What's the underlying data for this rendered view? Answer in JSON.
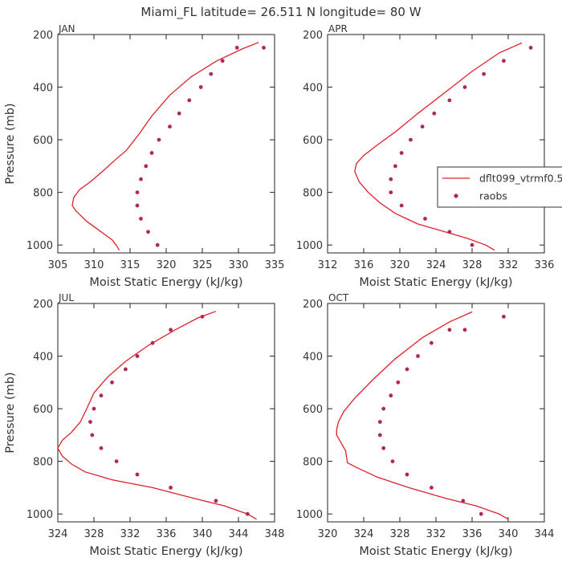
{
  "title": "Miami_FL   latitude= 26.511 N longitude= 80 W",
  "colors": {
    "model": "#e0202a",
    "obs": "#b0285a",
    "axis": "#222222",
    "text": "#333333"
  },
  "legend": {
    "entries": [
      {
        "label": "dflt099_vtrmf0.5",
        "kind": "line"
      },
      {
        "label": "raobs",
        "kind": "marker"
      }
    ]
  },
  "chart_data": [
    {
      "type": "line",
      "panel": "JAN",
      "xlabel": "Moist Static Energy (kJ/kg)",
      "ylabel": "Pressure (mb)",
      "xlim": [
        305,
        335
      ],
      "ylim": [
        200,
        1030
      ],
      "y_inverted": true,
      "xticks": [
        305,
        310,
        315,
        320,
        325,
        330,
        335
      ],
      "yticks": [
        200,
        400,
        600,
        800,
        1000
      ],
      "series": [
        {
          "kind": "line",
          "x": [
            313.5,
            313.2,
            312.5,
            311.0,
            309.0,
            307.5,
            307.0,
            307.2,
            308.0,
            309.5,
            311.2,
            312.8,
            314.5,
            316.2,
            318.0,
            320.5,
            323.5,
            327.0,
            330.5,
            332.8
          ],
          "y": [
            1020,
            1005,
            980,
            950,
            910,
            870,
            850,
            820,
            790,
            760,
            720,
            680,
            640,
            580,
            510,
            430,
            360,
            300,
            255,
            230
          ]
        },
        {
          "kind": "scatter",
          "x": [
            318.8,
            317.5,
            316.5,
            316.0,
            316.0,
            316.5,
            317.2,
            318.0,
            319.0,
            320.5,
            321.8,
            323.2,
            324.8,
            326.2,
            327.8,
            329.8,
            333.5
          ],
          "y": [
            1000,
            950,
            900,
            850,
            800,
            750,
            700,
            650,
            600,
            550,
            500,
            450,
            400,
            350,
            300,
            250,
            250
          ]
        }
      ]
    },
    {
      "type": "line",
      "panel": "APR",
      "xlabel": "Moist Static Energy (kJ/kg)",
      "ylabel": "",
      "xlim": [
        312,
        336
      ],
      "ylim": [
        200,
        1030
      ],
      "y_inverted": true,
      "xticks": [
        312,
        316,
        320,
        324,
        328,
        332,
        336
      ],
      "yticks": [
        200,
        400,
        600,
        800,
        1000
      ],
      "series": [
        {
          "kind": "line",
          "x": [
            330.5,
            329.5,
            327.5,
            325.0,
            322.0,
            319.5,
            317.8,
            316.5,
            315.5,
            315.0,
            315.2,
            316.0,
            317.5,
            319.5,
            322.0,
            325.0,
            328.0,
            331.0,
            333.5
          ],
          "y": [
            1020,
            1000,
            975,
            950,
            920,
            880,
            840,
            800,
            760,
            720,
            690,
            660,
            620,
            570,
            500,
            420,
            340,
            270,
            232
          ]
        },
        {
          "kind": "scatter",
          "x": [
            328.0,
            325.5,
            322.8,
            320.2,
            319.0,
            319.0,
            319.5,
            320.2,
            321.2,
            322.5,
            323.8,
            325.5,
            327.2,
            329.3,
            331.5,
            334.5
          ],
          "y": [
            1000,
            950,
            900,
            850,
            800,
            750,
            700,
            650,
            600,
            550,
            500,
            450,
            400,
            350,
            300,
            250
          ]
        }
      ]
    },
    {
      "type": "line",
      "panel": "JUL",
      "xlabel": "Moist Static Energy (kJ/kg)",
      "ylabel": "Pressure (mb)",
      "xlim": [
        324,
        348
      ],
      "ylim": [
        200,
        1030
      ],
      "y_inverted": true,
      "xticks": [
        324,
        328,
        332,
        336,
        340,
        344,
        348
      ],
      "yticks": [
        200,
        400,
        600,
        800,
        1000
      ],
      "series": [
        {
          "kind": "line",
          "x": [
            346.0,
            345.0,
            342.5,
            339.0,
            334.5,
            330.0,
            327.0,
            325.5,
            324.5,
            324.0,
            324.5,
            325.5,
            326.5,
            327.2,
            328.0,
            329.5,
            331.5,
            334.0,
            337.0,
            339.5,
            341.5
          ],
          "y": [
            1020,
            1000,
            970,
            940,
            900,
            870,
            840,
            810,
            780,
            750,
            720,
            690,
            650,
            600,
            540,
            480,
            420,
            360,
            300,
            255,
            230
          ]
        },
        {
          "kind": "scatter",
          "x": [
            345.0,
            341.5,
            336.5,
            332.8,
            330.5,
            328.8,
            327.8,
            327.6,
            328.0,
            328.8,
            330.0,
            331.5,
            332.8,
            334.5,
            336.5,
            340.0
          ],
          "y": [
            1000,
            950,
            900,
            850,
            800,
            750,
            700,
            650,
            600,
            550,
            500,
            450,
            400,
            350,
            300,
            250
          ]
        }
      ]
    },
    {
      "type": "line",
      "panel": "OCT",
      "xlabel": "Moist Static Energy (kJ/kg)",
      "ylabel": "",
      "xlim": [
        320,
        344
      ],
      "ylim": [
        200,
        1030
      ],
      "y_inverted": true,
      "xticks": [
        320,
        324,
        328,
        332,
        336,
        340,
        344
      ],
      "yticks": [
        200,
        400,
        600,
        800,
        1000
      ],
      "series": [
        {
          "kind": "line",
          "x": [
            340.0,
            339.0,
            336.5,
            333.0,
            329.0,
            325.5,
            323.0,
            322.2,
            322.0,
            321.5,
            321.0,
            321.0,
            321.2,
            321.8,
            323.0,
            325.0,
            327.5,
            330.5,
            333.5,
            336.0
          ],
          "y": [
            1020,
            1000,
            970,
            940,
            900,
            860,
            820,
            805,
            760,
            730,
            700,
            680,
            650,
            610,
            560,
            490,
            410,
            330,
            270,
            232
          ]
        },
        {
          "kind": "scatter",
          "x": [
            337.0,
            335.0,
            331.5,
            328.8,
            327.2,
            326.2,
            325.8,
            325.8,
            326.2,
            327.0,
            327.8,
            328.8,
            330.0,
            331.5,
            333.5,
            335.2,
            339.5
          ],
          "y": [
            1000,
            950,
            900,
            850,
            800,
            750,
            700,
            650,
            600,
            550,
            500,
            450,
            400,
            350,
            300,
            300,
            250
          ]
        }
      ]
    }
  ]
}
